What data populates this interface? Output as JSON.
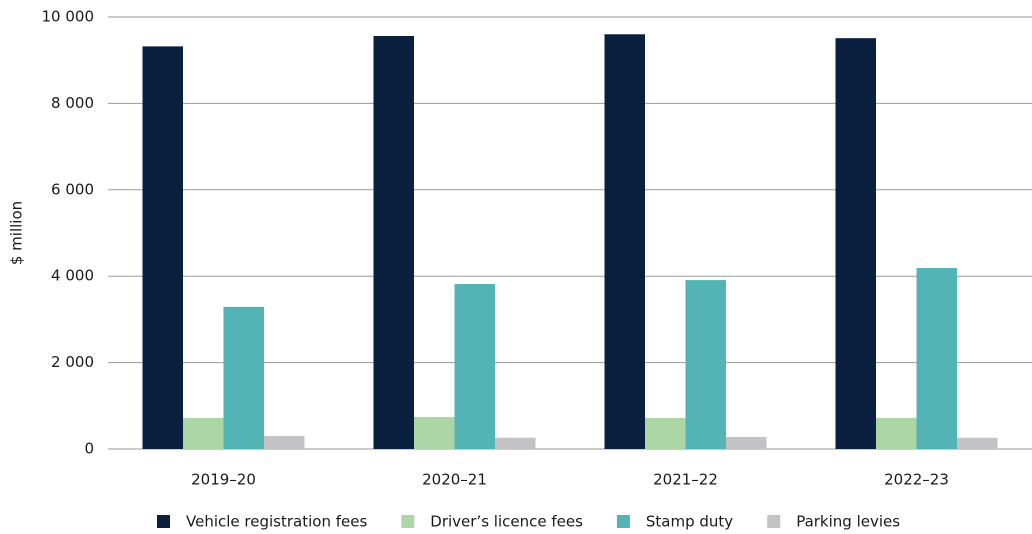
{
  "chart_data": {
    "type": "bar",
    "y_label": "$ million",
    "categories": [
      "2019–20",
      "2020–21",
      "2021–22",
      "2022–23"
    ],
    "series": [
      {
        "name": "Vehicle registration fees",
        "color": "#0b1f3f",
        "values": [
          9320,
          9560,
          9600,
          9510
        ]
      },
      {
        "name": "Driver’s licence fees",
        "color": "#acd6a6",
        "values": [
          720,
          740,
          720,
          720
        ]
      },
      {
        "name": "Stamp duty",
        "color": "#53b3b5",
        "values": [
          3290,
          3820,
          3910,
          4190
        ]
      },
      {
        "name": "Parking levies",
        "color": "#c3c3c5",
        "values": [
          300,
          260,
          280,
          260
        ]
      }
    ],
    "ylim": [
      0,
      10000
    ],
    "yticks": [
      0,
      {
        "value": 2000,
        "label": "2 000"
      },
      {
        "value": 4000,
        "label": "4 000"
      },
      {
        "value": 6000,
        "label": "6 000"
      },
      {
        "value": 8000,
        "label": "8 000"
      },
      {
        "value": 10000,
        "label": "10 000"
      }
    ],
    "grid": true,
    "legend": "bottom"
  }
}
